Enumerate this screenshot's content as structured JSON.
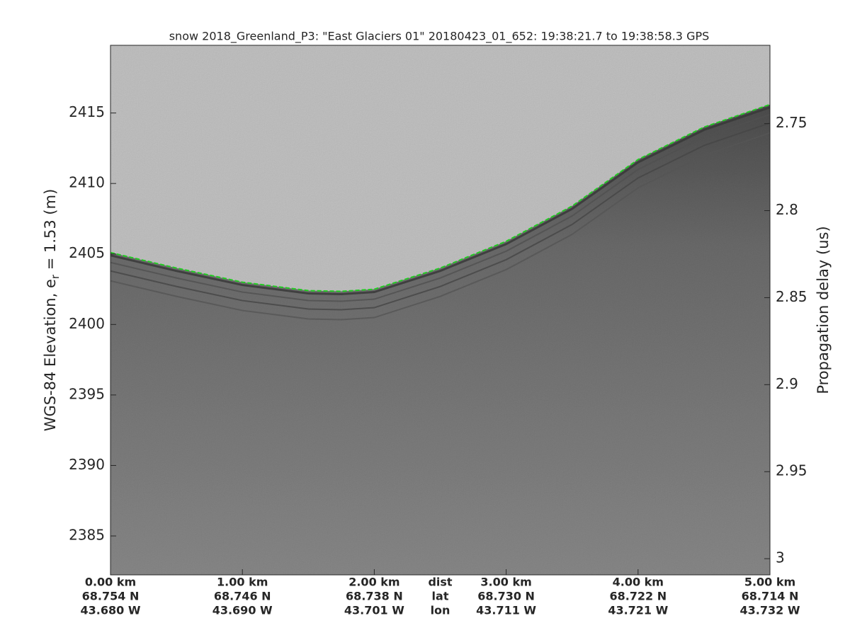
{
  "chart_data": {
    "type": "echogram",
    "title": "snow 2018_Greenland_P3: \"East Glaciers 01\"  20180423_01_652: 19:38:21.7 to 19:38:58.3 GPS",
    "ylabel": {
      "text": "WGS-84 Elevation, e",
      "subscript": "r",
      "suffix": " = 1.53 (m)"
    },
    "y2label": "Propagation delay (us)",
    "x_row_labels": [
      "dist",
      "lat",
      "lon"
    ],
    "xlim": [
      0,
      5
    ],
    "xticks": [
      {
        "value": 0,
        "label": "0.00 km",
        "lat": "68.754 N",
        "lon": "43.680 W"
      },
      {
        "value": 1,
        "label": "1.00 km",
        "lat": "68.746 N",
        "lon": "43.690 W"
      },
      {
        "value": 2,
        "label": "2.00 km",
        "lat": "68.738 N",
        "lon": "43.701 W"
      },
      {
        "value": 3,
        "label": "3.00 km",
        "lat": "68.730 N",
        "lon": "43.711 W"
      },
      {
        "value": 4,
        "label": "4.00 km",
        "lat": "68.722 N",
        "lon": "43.721 W"
      },
      {
        "value": 5,
        "label": "5.00 km",
        "lat": "68.714 N",
        "lon": "43.732 W"
      }
    ],
    "ylim": [
      2382.24,
      2419.8
    ],
    "yticks": [
      2385,
      2390,
      2395,
      2400,
      2405,
      2410,
      2415
    ],
    "y2lim": [
      3.0093,
      2.705
    ],
    "y2ticks": [
      2.75,
      2.8,
      2.85,
      2.9,
      2.95,
      3
    ],
    "x": [
      0,
      0.5,
      1,
      1.5,
      1.75,
      2,
      2.5,
      3,
      3.5,
      4,
      4.5,
      5
    ],
    "series": [
      {
        "color": "#22cc22",
        "values": [
          2405.1,
          2404.0,
          2403.0,
          2402.4,
          2402.35,
          2402.5,
          2404.0,
          2405.9,
          2408.4,
          2411.7,
          2414.0,
          2415.6
        ]
      }
    ]
  }
}
